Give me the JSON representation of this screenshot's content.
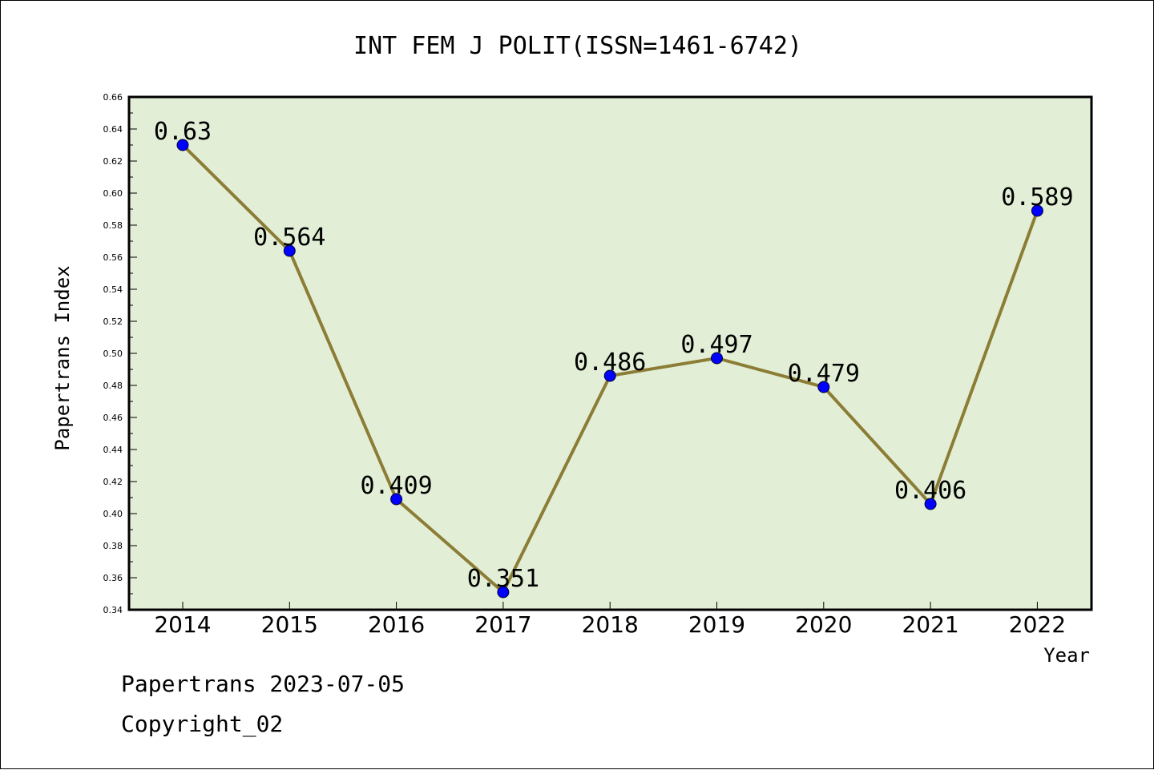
{
  "chart_data": {
    "type": "line",
    "title": "INT FEM J POLIT(ISSN=1461-6742)",
    "xlabel": "Year",
    "ylabel": "Papertrans Index",
    "categories": [
      "2014",
      "2015",
      "2016",
      "2017",
      "2018",
      "2019",
      "2020",
      "2021",
      "2022"
    ],
    "values": [
      0.63,
      0.564,
      0.409,
      0.351,
      0.486,
      0.497,
      0.479,
      0.406,
      0.589
    ],
    "data_labels": [
      "0.63",
      "0.564",
      "0.409",
      "0.351",
      "0.486",
      "0.497",
      "0.479",
      "0.406",
      "0.589"
    ],
    "ylim": [
      0.34,
      0.66
    ],
    "yticks": [
      "0.34",
      "0.36",
      "0.38",
      "0.40",
      "0.42",
      "0.44",
      "0.46",
      "0.48",
      "0.50",
      "0.52",
      "0.54",
      "0.56",
      "0.58",
      "0.60",
      "0.62",
      "0.64",
      "0.66"
    ],
    "grid": false,
    "colors": {
      "plot_background": "#e2efd6",
      "line": "#8b7d35",
      "marker": "#0000ff"
    }
  },
  "footer": {
    "source": "Papertrans 2023-07-05",
    "copyright": "Copyright_02"
  }
}
